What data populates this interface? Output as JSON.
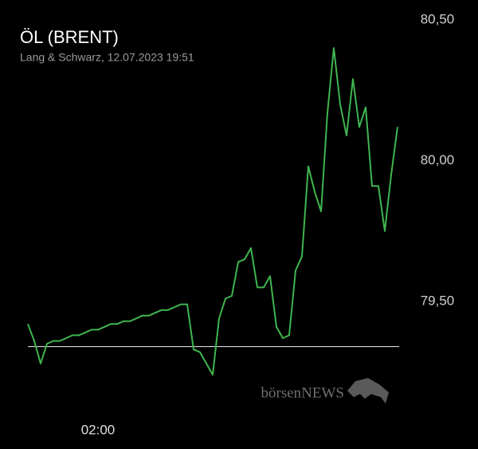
{
  "chart_data": {
    "type": "line",
    "title": "ÖL (BRENT)",
    "subtitle": "Lang & Schwarz, 12.07.2023 19:51",
    "watermark": "börsenNEWS",
    "categories": [
      null,
      null,
      null,
      null,
      null,
      null,
      null,
      null,
      null,
      null,
      null,
      "02:00",
      null,
      null,
      null,
      null,
      null,
      null,
      null,
      null,
      null,
      null,
      null,
      null,
      null,
      null,
      null,
      null,
      null,
      null,
      null,
      null,
      null,
      null,
      null,
      null,
      null,
      null,
      null,
      null,
      null,
      null,
      null,
      null,
      null,
      null,
      null,
      null,
      null,
      null,
      null,
      null,
      null,
      null,
      null,
      null,
      null,
      null,
      null
    ],
    "series": [
      {
        "color": "#3fb54f",
        "values": [
          79.42,
          79.36,
          79.28,
          79.35,
          79.36,
          79.36,
          79.37,
          79.38,
          79.38,
          79.39,
          79.4,
          79.4,
          79.41,
          79.42,
          79.42,
          79.43,
          79.43,
          79.44,
          79.45,
          79.45,
          79.46,
          79.47,
          79.47,
          79.48,
          79.49,
          79.49,
          79.33,
          79.32,
          79.28,
          79.24,
          79.44,
          79.51,
          79.52,
          79.64,
          79.65,
          79.69,
          79.55,
          79.55,
          79.59,
          79.41,
          79.37,
          79.38,
          79.61,
          79.66,
          79.98,
          79.89,
          79.82,
          80.17,
          80.4,
          80.2,
          80.09,
          80.29,
          80.12,
          80.19,
          79.91,
          79.91,
          79.75,
          79.95,
          80.12
        ]
      }
    ],
    "reference_line": 79.34,
    "ylim": [
      79.2,
      80.55
    ],
    "yticks": [
      {
        "value": 79.5,
        "label": "79,50"
      },
      {
        "value": 80,
        "label": "80,00"
      },
      {
        "value": 80.5,
        "label": "80,50"
      }
    ]
  }
}
